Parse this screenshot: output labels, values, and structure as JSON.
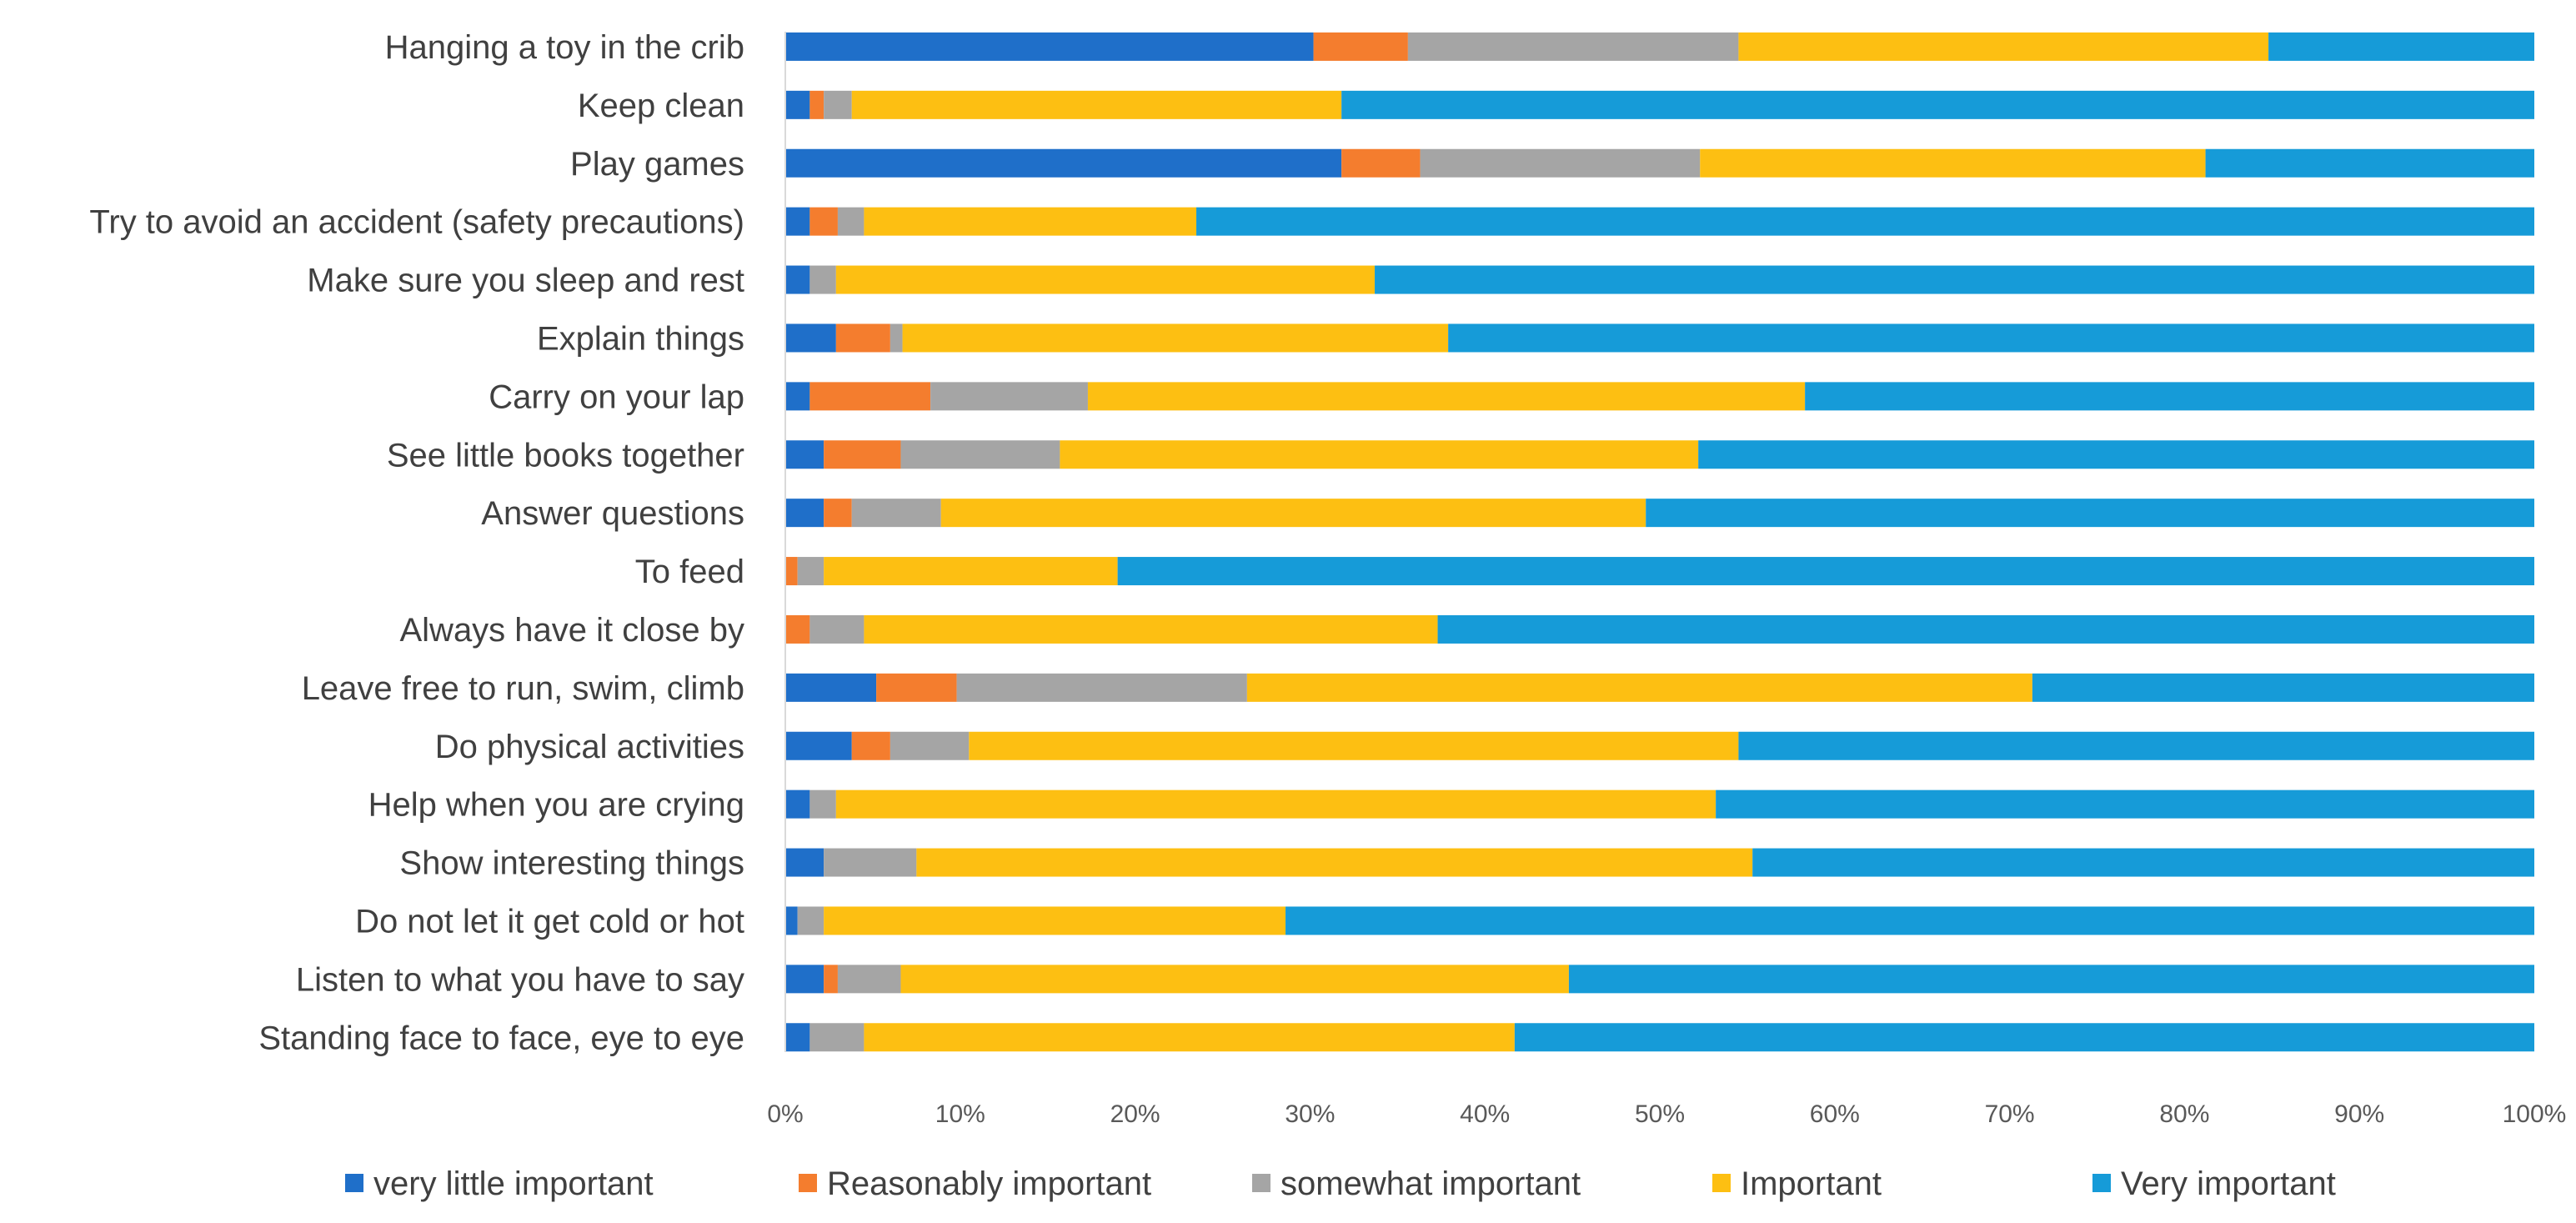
{
  "chart_data": {
    "type": "bar",
    "orientation": "horizontal",
    "stacked": "percent",
    "title": "",
    "xlabel": "",
    "ylabel": "",
    "xlim": [
      0,
      100
    ],
    "x_ticks": [
      "0%",
      "10%",
      "20%",
      "30%",
      "40%",
      "50%",
      "60%",
      "70%",
      "80%",
      "90%",
      "100%"
    ],
    "grid": false,
    "legend_position": "bottom",
    "categories": [
      "Hanging a toy in the crib",
      "Keep clean",
      "Play games",
      "Try to avoid an accident (safety precautions)",
      "Make sure you sleep and rest",
      "Explain things",
      "Carry on your lap",
      "See little books together",
      "Answer questions",
      "To feed",
      "Always have it close by",
      "Leave free to run, swim, climb",
      "Do physical activities",
      "Help when you are crying",
      "Show interesting things",
      "Do not let it get cold or hot",
      "Listen to what you have to say",
      "Standing face to face, eye to eye"
    ],
    "series": [
      {
        "name": "very little important",
        "color": "#1f6fc9",
        "values": [
          30.2,
          1.4,
          31.8,
          1.4,
          1.4,
          2.9,
          1.4,
          2.2,
          2.2,
          0,
          0,
          5.2,
          3.8,
          1.4,
          2.2,
          0.7,
          2.2,
          1.4
        ]
      },
      {
        "name": "Reasonably important",
        "color": "#f47d2e",
        "values": [
          5.4,
          0.8,
          4.5,
          1.6,
          0,
          3.1,
          6.9,
          4.4,
          1.6,
          0.7,
          1.4,
          4.6,
          2.2,
          0,
          0,
          0,
          0.8,
          0
        ]
      },
      {
        "name": "somewhat important",
        "color": "#a5a5a5",
        "values": [
          18.9,
          1.6,
          16.0,
          1.5,
          1.5,
          0.7,
          9.0,
          9.1,
          5.1,
          1.5,
          3.1,
          16.6,
          4.5,
          1.5,
          5.3,
          1.5,
          3.6,
          3.1
        ]
      },
      {
        "name": "Important",
        "color": "#fdbf12",
        "values": [
          30.3,
          28.0,
          28.9,
          19.0,
          30.8,
          31.2,
          41.0,
          36.5,
          40.3,
          16.8,
          32.8,
          44.9,
          44.0,
          50.3,
          47.8,
          26.4,
          38.2,
          37.2
        ]
      },
      {
        "name": "Very important",
        "color": "#169bd8",
        "values": [
          15.2,
          68.2,
          18.8,
          76.5,
          66.3,
          62.1,
          41.7,
          47.8,
          50.8,
          81.0,
          62.7,
          28.7,
          45.5,
          46.8,
          44.7,
          71.4,
          55.2,
          58.3
        ]
      }
    ]
  }
}
